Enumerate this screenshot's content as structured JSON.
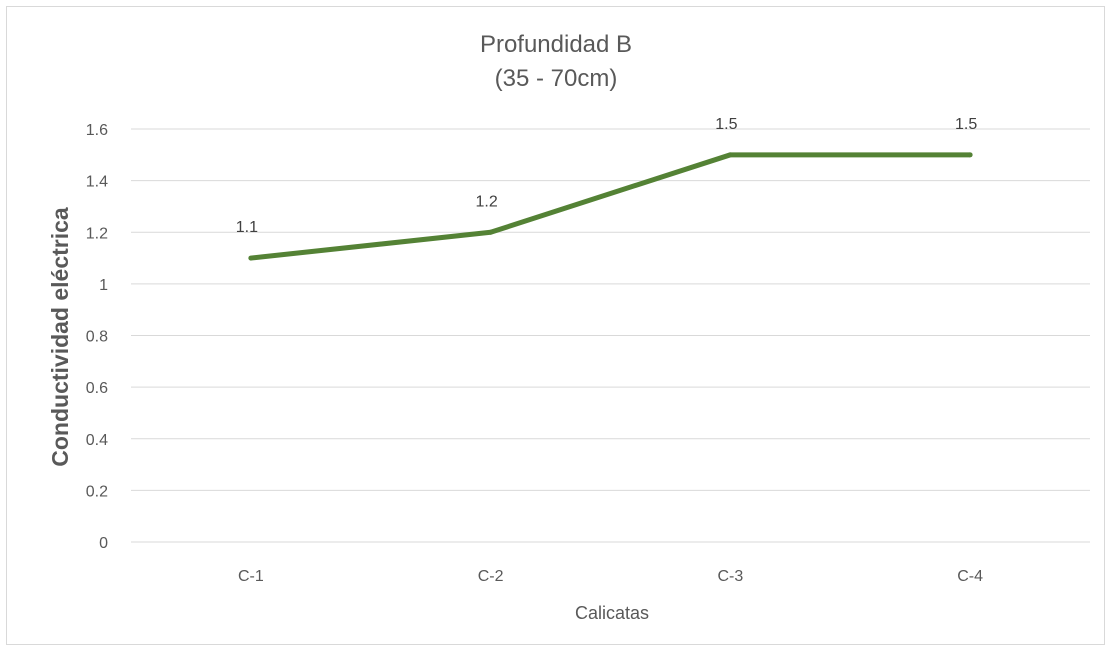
{
  "chart_data": {
    "type": "line",
    "title_lines": [
      "Profundidad B",
      "(35 - 70cm)"
    ],
    "xlabel": "Calicatas",
    "ylabel": "Conductividad eléctrica",
    "categories": [
      "C-1",
      "C-2",
      "C-3",
      "C-4"
    ],
    "series": [
      {
        "values": [
          1.1,
          1.2,
          1.5,
          1.5
        ],
        "color": "#548235",
        "data_labels": [
          "1.1",
          "1.2",
          "1.5",
          "1.5"
        ]
      }
    ],
    "ylim": [
      0,
      1.6
    ],
    "ymajor": 0.2,
    "ytick_labels": [
      "0",
      "0.2",
      "0.4",
      "0.6",
      "0.8",
      "1",
      "1.2",
      "1.4",
      "1.6"
    ],
    "grid": true,
    "gridline_color": "#d9d9d9",
    "legend": "none"
  }
}
